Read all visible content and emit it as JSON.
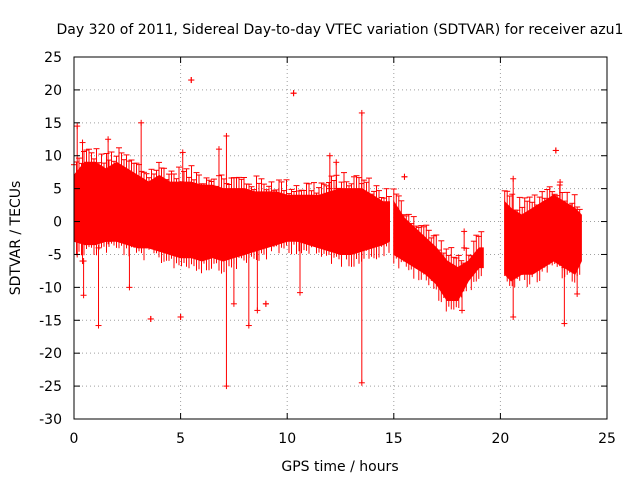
{
  "chart_data": {
    "type": "scatter",
    "title": "Day 320 of 2011, Sidereal Day-to-day VTEC variation (SDTVAR) for receiver azu1",
    "xlabel": "GPS time / hours",
    "ylabel": "SDTVAR / TECUs",
    "xlim": [
      0,
      25
    ],
    "ylim": [
      -30,
      25
    ],
    "xticks": [
      0,
      5,
      10,
      15,
      20,
      25
    ],
    "yticks": [
      25,
      20,
      15,
      10,
      5,
      0,
      -5,
      -10,
      -15,
      -20,
      -25,
      -30
    ],
    "grid": true,
    "marker": "+",
    "color": "#ff0000",
    "bands": [
      {
        "x": [
          0.0,
          0.5,
          1.0,
          1.5,
          2.0,
          2.5,
          3.0,
          3.5,
          4.0,
          4.5,
          5.0,
          5.5,
          6.0,
          6.5,
          7.0,
          7.5,
          8.0,
          8.5,
          9.0,
          9.5,
          10.0,
          10.5,
          11.0,
          11.5,
          12.0,
          12.5,
          13.0,
          13.5,
          14.0,
          14.5,
          14.8
        ],
        "upper": [
          7,
          9,
          9,
          8,
          9,
          8,
          7,
          6,
          7,
          6,
          6,
          6,
          5.5,
          5.5,
          5,
          5,
          5,
          4.5,
          4.5,
          4.5,
          4,
          4,
          4,
          4,
          4.5,
          5,
          5,
          5,
          4,
          3,
          3
        ],
        "lower": [
          -3,
          -3.5,
          -3.5,
          -3,
          -3,
          -3.5,
          -4,
          -4,
          -4.5,
          -5,
          -5.5,
          -5.5,
          -6,
          -5.5,
          -6,
          -5.5,
          -5,
          -4.5,
          -4,
          -3.5,
          -3,
          -3,
          -3.5,
          -4,
          -4.5,
          -5,
          -5,
          -4.5,
          -4,
          -3.5,
          -3
        ]
      },
      {
        "x": [
          15.0,
          15.5,
          16.0,
          16.5,
          17.0,
          17.5,
          18.0,
          18.5,
          19.0,
          19.2
        ],
        "upper": [
          3,
          0.5,
          -1,
          -2.5,
          -4,
          -6,
          -7,
          -6,
          -4,
          -4
        ],
        "lower": [
          -5,
          -6,
          -7,
          -8,
          -9.5,
          -12,
          -12,
          -9,
          -7,
          -7
        ]
      },
      {
        "x": [
          20.2,
          20.5,
          21.0,
          21.5,
          22.0,
          22.5,
          23.0,
          23.5,
          23.8
        ],
        "upper": [
          3,
          2,
          1,
          2,
          3,
          4,
          3,
          2,
          1
        ],
        "lower": [
          -8,
          -9,
          -8,
          -8,
          -7,
          -6,
          -7,
          -8,
          -6
        ]
      }
    ],
    "spikes": [
      {
        "x": 0.15,
        "y": [
          -5,
          14.5
        ]
      },
      {
        "x": 0.4,
        "y": [
          -6,
          12
        ]
      },
      {
        "x": 0.45,
        "y": [
          -11.2,
          -6
        ]
      },
      {
        "x": 1.15,
        "y": [
          -15.8,
          -4
        ]
      },
      {
        "x": 1.6,
        "y": [
          -3,
          12.5
        ]
      },
      {
        "x": 2.6,
        "y": [
          -10,
          -3
        ]
      },
      {
        "x": 3.15,
        "y": [
          -3,
          15
        ]
      },
      {
        "x": 3.6,
        "y": [
          -14.8,
          -14.8
        ]
      },
      {
        "x": 5.0,
        "y": [
          -14.5,
          -14.5
        ]
      },
      {
        "x": 5.1,
        "y": [
          -4,
          10.5
        ]
      },
      {
        "x": 5.5,
        "y": [
          21.5,
          21.5
        ]
      },
      {
        "x": 6.8,
        "y": [
          5,
          11
        ]
      },
      {
        "x": 7.15,
        "y": [
          -25,
          13
        ]
      },
      {
        "x": 7.5,
        "y": [
          -12.5,
          -5
        ]
      },
      {
        "x": 8.2,
        "y": [
          -15.8,
          -4
        ]
      },
      {
        "x": 8.6,
        "y": [
          -13.5,
          -4
        ]
      },
      {
        "x": 9.0,
        "y": [
          -12.5,
          -12.5
        ]
      },
      {
        "x": 10.3,
        "y": [
          19.5,
          19.5
        ]
      },
      {
        "x": 10.6,
        "y": [
          -10.8,
          -3
        ]
      },
      {
        "x": 12.0,
        "y": [
          5,
          10
        ]
      },
      {
        "x": 12.3,
        "y": [
          5,
          9
        ]
      },
      {
        "x": 13.5,
        "y": [
          -24.5,
          16.5
        ]
      },
      {
        "x": 15.5,
        "y": [
          6.8,
          6.8
        ]
      },
      {
        "x": 18.2,
        "y": [
          -13.5,
          -7
        ]
      },
      {
        "x": 18.3,
        "y": [
          -4,
          -1.5
        ]
      },
      {
        "x": 20.6,
        "y": [
          -14.5,
          6.5
        ]
      },
      {
        "x": 22.6,
        "y": [
          10.8,
          10.8
        ]
      },
      {
        "x": 22.8,
        "y": [
          3,
          6
        ]
      },
      {
        "x": 23.0,
        "y": [
          -15.5,
          -7
        ]
      },
      {
        "x": 23.6,
        "y": [
          -11,
          -6
        ]
      }
    ]
  }
}
